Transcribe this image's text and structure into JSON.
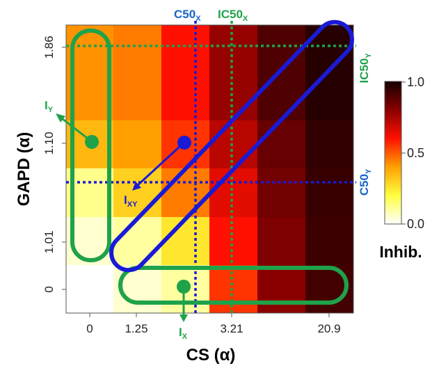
{
  "chart_data": {
    "type": "heatmap",
    "xlabel": "CS (α)",
    "ylabel": "GAPD (α)",
    "x_tick_labels": [
      "0",
      "1.25",
      "3.21",
      "20.9"
    ],
    "y_tick_labels": [
      "0",
      "1.01",
      "1.10",
      "1.86"
    ],
    "colorbar": {
      "title": "Inhib.",
      "ticks": [
        "0.0",
        "0.5",
        "1.0"
      ],
      "range": [
        0,
        1
      ]
    },
    "cells": [
      [
        0.0,
        0.05,
        0.1,
        0.55,
        0.8,
        0.92
      ],
      [
        0.05,
        0.1,
        0.25,
        0.6,
        0.82,
        0.93
      ],
      [
        0.12,
        0.3,
        0.45,
        0.65,
        0.84,
        0.94
      ],
      [
        0.35,
        0.4,
        0.55,
        0.72,
        0.86,
        0.95
      ],
      [
        0.42,
        0.45,
        0.6,
        0.78,
        0.9,
        0.97
      ]
    ],
    "annotations": {
      "c50x": {
        "main": "C50",
        "sub": "X"
      },
      "ic50x": {
        "main": "IC50",
        "sub": "X"
      },
      "c50y": {
        "main": "C50",
        "sub": "Y"
      },
      "ic50y": {
        "main": "IC50",
        "sub": "Y"
      },
      "ix": {
        "main": "I",
        "sub": "X"
      },
      "iy": {
        "main": "I",
        "sub": "Y"
      },
      "ixy": {
        "main": "I",
        "sub": "XY"
      }
    },
    "colors": {
      "green": "#1fa24a",
      "blue": "#1a1ad6",
      "c50_blue": "#1565c8"
    }
  }
}
